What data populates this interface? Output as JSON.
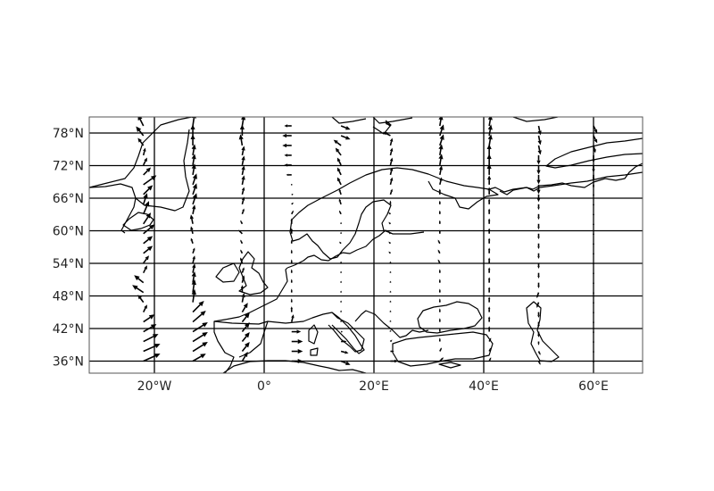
{
  "map": {
    "projection": "PlateCarree",
    "extent": {
      "lon": [
        -32,
        69
      ],
      "lat": [
        34,
        81
      ]
    },
    "gridlines": true,
    "grid_color": "#000000",
    "arrow_color": "#000000",
    "coastline_color": "#000000",
    "x_ticks": [
      {
        "value": -20,
        "label": "20°W"
      },
      {
        "value": 0,
        "label": "0°"
      },
      {
        "value": 20,
        "label": "20°E"
      },
      {
        "value": 40,
        "label": "40°E"
      },
      {
        "value": 60,
        "label": "60°E"
      }
    ],
    "y_ticks": [
      {
        "value": 36,
        "label": "36°N"
      },
      {
        "value": 42,
        "label": "42°N"
      },
      {
        "value": 48,
        "label": "48°N"
      },
      {
        "value": 54,
        "label": "54°N"
      },
      {
        "value": 60,
        "label": "60°N"
      },
      {
        "value": 66,
        "label": "66°N"
      },
      {
        "value": 72,
        "label": "72°N"
      },
      {
        "value": 78,
        "label": "78°N"
      }
    ],
    "quiver_columns": [
      {
        "lon": -22,
        "u": [
          4.5,
          4.5,
          4.0,
          3.5,
          3.0,
          1.0,
          -1.5,
          -3.0,
          -2.5,
          1.0,
          1.5,
          2.5,
          2.5,
          3.0,
          2.0,
          1.5,
          1.0,
          2.5,
          3.5,
          2.0,
          1.0,
          0.5,
          -1.5,
          -2.0,
          -1.5
        ]
      },
      {
        "lon": -13,
        "u": [
          3.5,
          4.0,
          4.0,
          4.0,
          3.5,
          3.0,
          0.5,
          0.5,
          0.5,
          0.5,
          0.5,
          0.5,
          -0.5,
          -0.5,
          -0.5,
          0.5,
          1.0,
          1.0,
          1.0,
          0.5,
          0.5,
          0.5,
          0.0,
          0.0,
          0.5
        ]
      },
      {
        "lon": -4,
        "u": [
          1.5,
          2.0,
          2.0,
          2.0,
          2.0,
          1.5,
          0.5,
          0.0,
          0.5,
          0.5,
          -0.5,
          -0.5,
          -0.5,
          -1.0,
          -0.5,
          0.5,
          0.5,
          0.5,
          0.5,
          0.5,
          0.5,
          0.5,
          -0.5,
          0.0,
          0.5
        ]
      },
      {
        "lon": 5,
        "u": [
          3.0,
          3.0,
          3.0,
          2.5,
          0.5,
          0.0,
          0.0,
          0.0,
          0.0,
          0.0,
          0.0,
          0.0,
          0.0,
          0.0,
          0.0,
          0.5,
          0.5,
          0.5,
          0.0,
          -1.5,
          -2.0,
          -2.0,
          -2.5,
          -2.5,
          -2.0
        ]
      },
      {
        "lon": 14,
        "u": [
          2.5,
          2.0,
          1.5,
          0.5,
          0.0,
          0.0,
          0.0,
          0.0,
          0.0,
          0.0,
          0.0,
          0.0,
          -0.5,
          0.0,
          0.0,
          -0.5,
          -0.5,
          -0.5,
          -1.0,
          -1.0,
          -1.0,
          -1.5,
          -2.0,
          2.5,
          2.5
        ]
      },
      {
        "lon": 23,
        "u": [
          2.0,
          1.0,
          0.5,
          0.0,
          0.0,
          0.0,
          0.0,
          0.0,
          0.0,
          0.0,
          0.0,
          -0.5,
          -0.5,
          -0.5,
          -0.5,
          -0.5,
          0.0,
          0.5,
          0.5,
          0.5,
          0.5,
          0.5,
          0.5,
          -2.0,
          -1.5
        ]
      },
      {
        "lon": 32,
        "u": [
          1.0,
          0.5,
          0.0,
          0.0,
          0.0,
          0.0,
          0.0,
          0.0,
          0.0,
          0.0,
          -0.5,
          -0.5,
          -0.5,
          0.0,
          0.0,
          0.0,
          0.0,
          0.0,
          0.5,
          0.5,
          0.5,
          0.5,
          1.0,
          1.0,
          0.5
        ]
      },
      {
        "lon": 41,
        "u": [
          0.5,
          0.5,
          0.5,
          0.0,
          0.0,
          0.0,
          0.0,
          0.0,
          0.0,
          0.0,
          0.0,
          0.0,
          0.0,
          0.0,
          0.0,
          0.0,
          0.0,
          0.0,
          0.0,
          0.0,
          0.0,
          0.0,
          0.5,
          0.5,
          0.5
        ]
      },
      {
        "lon": 50,
        "u": [
          0.5,
          0.5,
          0.0,
          0.0,
          0.0,
          0.0,
          -0.5,
          -0.5,
          0.0,
          0.0,
          0.0,
          0.0,
          0.0,
          0.0,
          0.0,
          0.0,
          0.0,
          0.0,
          0.0,
          0.0,
          0.0,
          0.0,
          0.5,
          0.5,
          0.5
        ]
      },
      {
        "lon": 60,
        "u": [
          0.0,
          0.0,
          0.0,
          0.0,
          0.0,
          0.0,
          0.0,
          0.0,
          0.0,
          0.0,
          0.0,
          0.0,
          0.0,
          0.0,
          0.0,
          0.0,
          0.0,
          0.0,
          0.0,
          0.0,
          0.0,
          0.0,
          0.5,
          1.0,
          1.0
        ]
      }
    ],
    "quiver_lats": [
      36,
      37.8,
      39.6,
      41.4,
      43.2,
      45,
      46.8,
      48.6,
      50.4,
      52.2,
      54,
      55.8,
      57.6,
      59.4,
      61.2,
      63,
      64.8,
      66.6,
      68.4,
      70.2,
      72,
      73.8,
      75.6,
      77.4,
      79.2
    ],
    "quiver_v": [
      [
        2.0,
        2.0,
        2.0,
        2.0,
        2.0,
        2.0,
        2.0,
        2.0,
        2.0,
        2.0,
        2.0,
        2.0,
        2.0,
        2.5,
        3.0,
        3.5,
        3.0,
        2.5,
        2.5,
        2.0,
        2.0,
        2.0,
        2.0,
        2.5,
        3.0
      ],
      [
        2.0,
        2.5,
        2.5,
        2.5,
        3.0,
        3.0,
        3.5,
        3.5,
        3.0,
        2.5,
        2.0,
        1.5,
        1.5,
        2.0,
        2.5,
        2.5,
        3.0,
        3.0,
        3.0,
        3.0,
        3.0,
        3.0,
        3.0,
        3.0,
        3.5
      ],
      [
        2.5,
        2.5,
        2.5,
        2.5,
        2.5,
        2.5,
        2.5,
        2.0,
        2.0,
        1.5,
        1.5,
        1.0,
        1.0,
        1.0,
        1.0,
        1.5,
        2.0,
        2.0,
        2.5,
        2.5,
        2.5,
        2.5,
        3.0,
        3.0,
        3.0
      ],
      [
        0.0,
        0.0,
        0.0,
        0.0,
        2.0,
        1.5,
        1.0,
        1.0,
        1.0,
        1.0,
        1.0,
        1.0,
        1.0,
        1.5,
        1.5,
        1.0,
        0.5,
        0.0,
        0.0,
        0.0,
        0.0,
        0.0,
        0.0,
        0.0,
        0.0
      ],
      [
        -1.0,
        -0.5,
        0.0,
        0.0,
        0.5,
        0.5,
        0.5,
        0.5,
        0.5,
        0.5,
        0.5,
        0.5,
        0.5,
        0.5,
        0.5,
        1.0,
        1.5,
        1.5,
        2.0,
        2.0,
        2.0,
        2.0,
        1.5,
        -1.0,
        -1.0
      ],
      [
        0.0,
        0.0,
        0.5,
        0.5,
        0.5,
        0.5,
        0.5,
        0.5,
        0.5,
        0.5,
        0.5,
        0.5,
        0.5,
        0.5,
        0.5,
        0.5,
        1.0,
        1.5,
        2.0,
        2.0,
        2.0,
        2.0,
        2.0,
        1.0,
        1.0
      ],
      [
        1.0,
        1.0,
        1.0,
        1.0,
        1.0,
        1.0,
        1.0,
        1.0,
        1.0,
        1.0,
        1.0,
        1.0,
        1.0,
        1.0,
        1.0,
        1.0,
        1.0,
        1.5,
        2.0,
        2.5,
        3.0,
        3.0,
        3.0,
        3.0,
        3.0
      ],
      [
        1.0,
        1.0,
        1.0,
        1.5,
        1.5,
        1.5,
        1.5,
        1.5,
        1.5,
        1.5,
        1.5,
        1.5,
        1.5,
        1.5,
        1.5,
        1.5,
        1.5,
        2.0,
        2.5,
        3.0,
        3.0,
        3.0,
        3.0,
        3.0,
        3.0
      ],
      [
        -1.0,
        -1.0,
        -1.0,
        -1.5,
        -1.5,
        -1.5,
        -1.5,
        -1.5,
        -1.5,
        -1.5,
        -1.5,
        -1.5,
        -1.5,
        -1.5,
        -1.5,
        -1.5,
        -1.5,
        -2.0,
        -2.5,
        -2.5,
        -2.5,
        -2.5,
        -2.5,
        -2.5,
        -2.5
      ],
      [
        -0.5,
        -0.5,
        -0.5,
        -0.5,
        -0.5,
        -0.5,
        -0.5,
        -0.5,
        -0.5,
        -0.5,
        -0.5,
        -0.5,
        -0.5,
        -0.5,
        -0.5,
        -0.5,
        -0.5,
        -0.5,
        -1.0,
        -1.5,
        -2.0,
        -2.0,
        -2.0,
        -2.0,
        -2.0
      ]
    ]
  }
}
